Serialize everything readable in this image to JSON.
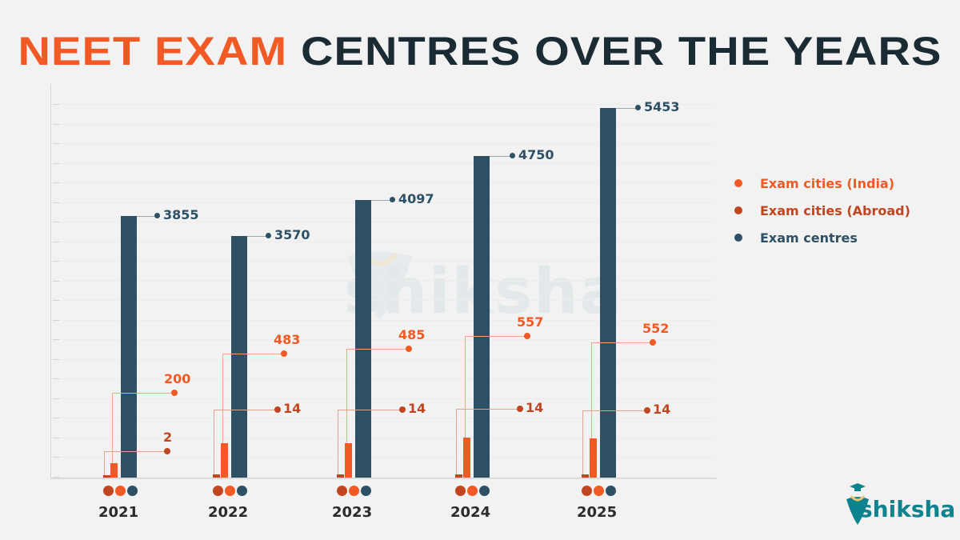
{
  "title": {
    "accent": "NEET EXAM",
    "main": " CENTRES OVER THE YEARS"
  },
  "colors": {
    "india": "#f15a24",
    "abroad": "#c1461f",
    "centres": "#2d5064",
    "title_dark": "#1b2b33",
    "logo_teal": "#0e8390"
  },
  "legend": [
    {
      "label": "Exam cities  (India)",
      "color": "#f15a24"
    },
    {
      "label": "Exam cities  (Abroad)",
      "color": "#c1461f"
    },
    {
      "label": "Exam centres",
      "color": "#2d5064"
    }
  ],
  "years": [
    {
      "year": "2021",
      "india": "200",
      "abroad": "2",
      "centres": "3855"
    },
    {
      "year": "2022",
      "india": "483",
      "abroad": "14",
      "centres": "3570"
    },
    {
      "year": "2023",
      "india": "485",
      "abroad": "14",
      "centres": "4097"
    },
    {
      "year": "2024",
      "india": "557",
      "abroad": "14",
      "centres": "4750"
    },
    {
      "year": "2025",
      "india": "552",
      "abroad": "14",
      "centres": "5453"
    }
  ],
  "watermark": "shiksha",
  "logo": {
    "text": "shiksha"
  },
  "chart_data": {
    "type": "bar",
    "title": "NEET EXAM CENTRES OVER THE YEARS",
    "categories": [
      "2021",
      "2022",
      "2023",
      "2024",
      "2025"
    ],
    "series": [
      {
        "name": "Exam cities  (Abroad)",
        "values": [
          2,
          14,
          14,
          14,
          14
        ],
        "color": "#c1461f"
      },
      {
        "name": "Exam cities  (India)",
        "values": [
          200,
          483,
          485,
          557,
          552
        ],
        "color": "#f15a24"
      },
      {
        "name": "Exam centres",
        "values": [
          3855,
          3570,
          4097,
          4750,
          5453
        ],
        "color": "#2d5064"
      }
    ],
    "xlabel": "",
    "ylabel": "",
    "ylim": [
      0,
      5800
    ],
    "grid": true,
    "legend_position": "right",
    "annotations": "Value labels shown with leader lines and dots for each bar"
  }
}
